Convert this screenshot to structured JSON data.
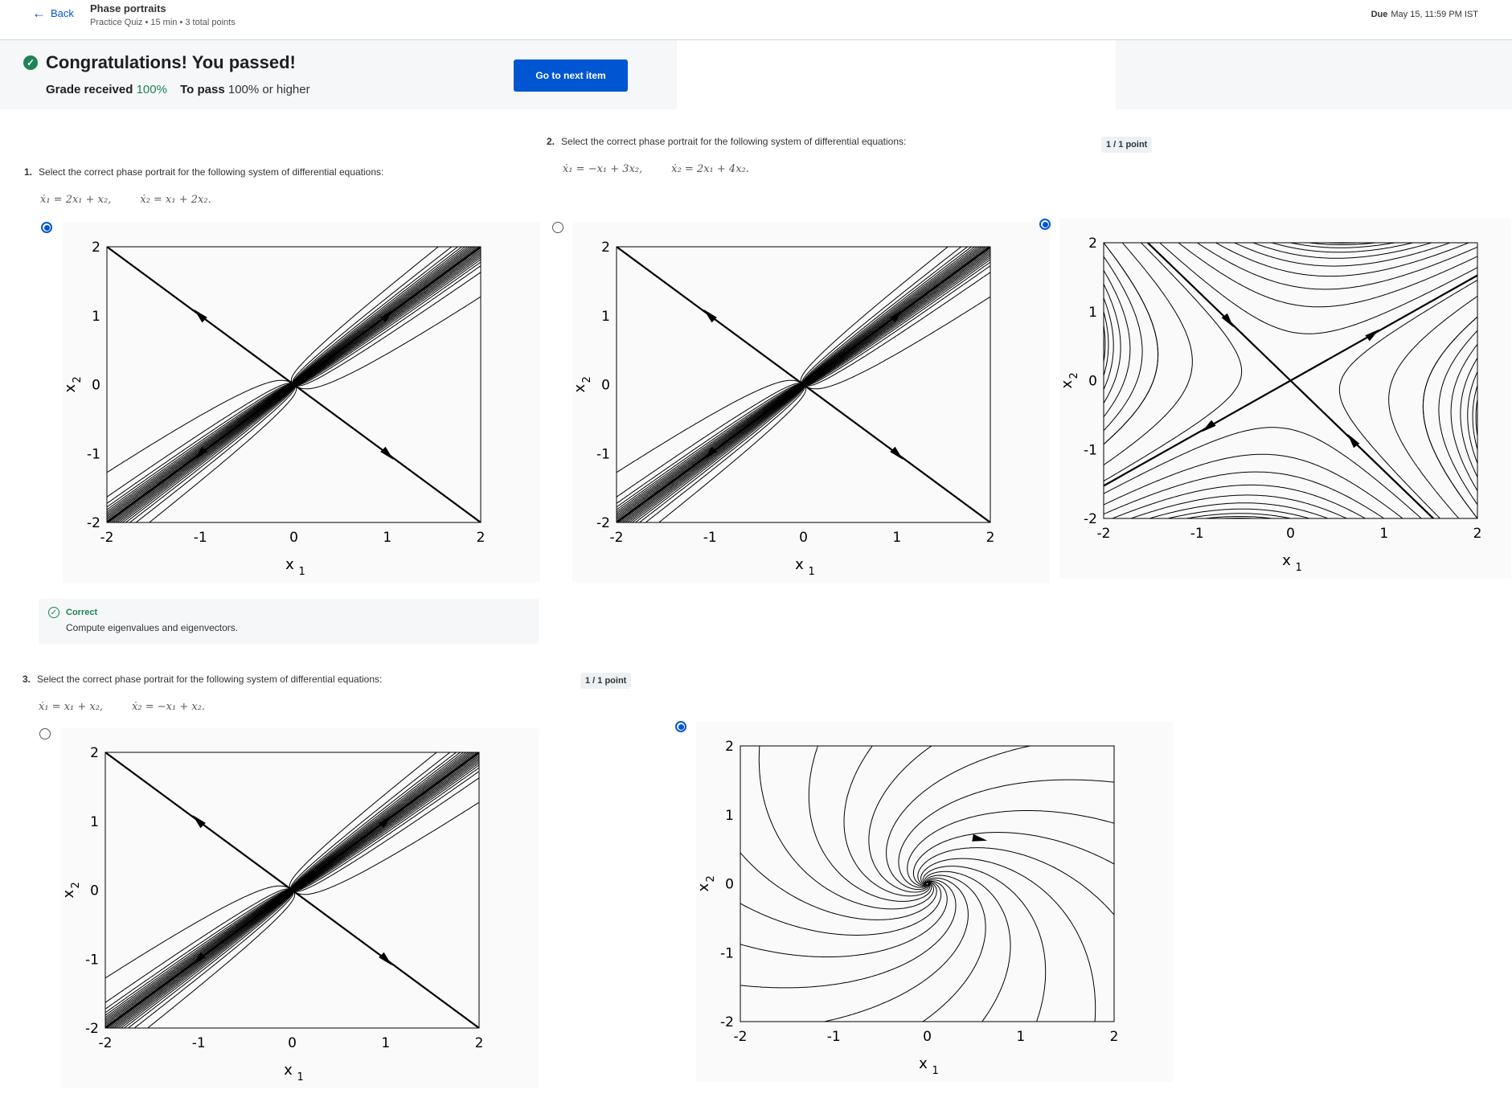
{
  "header": {
    "back_label": "Back",
    "title": "Phase portraits",
    "meta": "Practice Quiz • 15 min • 3 total points",
    "due_label": "Due",
    "due_value": "May 15, 11:59 PM IST"
  },
  "banner": {
    "headline": "Congratulations! You passed!",
    "grade_label": "Grade received",
    "grade_value": "100%",
    "pass_label": "To pass",
    "pass_value": "100% or higher",
    "next_button": "Go to next item"
  },
  "questions": [
    {
      "number": "1.",
      "prompt": "Select the correct phase portrait for the following system of differential equations:",
      "eq1": "ẋ₁ = 2x₁ + x₂,",
      "eq2": "ẋ₂ = x₁ + 2x₂.",
      "feedback_label": "Correct",
      "feedback_text": "Compute eigenvalues and eigenvectors."
    },
    {
      "number": "2.",
      "prompt": "Select the correct phase portrait for the following system of differential equations:",
      "eq1": "ẋ₁ = −x₁ + 3x₂,",
      "eq2": "ẋ₂ = 2x₁ + 4x₂.",
      "points": "1 / 1 point"
    },
    {
      "number": "3.",
      "prompt": "Select the correct phase portrait for the following system of differential equations:",
      "eq1": "ẋ₁ = x₁ + x₂,",
      "eq2": "ẋ₂ = −x₁ + x₂.",
      "points": "1 / 1 point"
    }
  ],
  "plots": {
    "ticks": [
      "-2",
      "-1",
      "0",
      "1",
      "2"
    ],
    "xlabel": "x",
    "xlabel_sub": "1",
    "ylabel": "x",
    "ylabel_sub": "2"
  },
  "options": [
    {
      "id": "q1-a",
      "selected": true,
      "portrait": "node"
    },
    {
      "id": "q2-a",
      "selected": false,
      "portrait": "node"
    },
    {
      "id": "q2-b",
      "selected": true,
      "portrait": "saddle"
    },
    {
      "id": "q3-a",
      "selected": false,
      "portrait": "node"
    },
    {
      "id": "q3-b",
      "selected": true,
      "portrait": "spiral"
    }
  ],
  "colors": {
    "accent": "#0056d2",
    "success": "#1f8354",
    "banner_bg": "#f5f7f8"
  }
}
